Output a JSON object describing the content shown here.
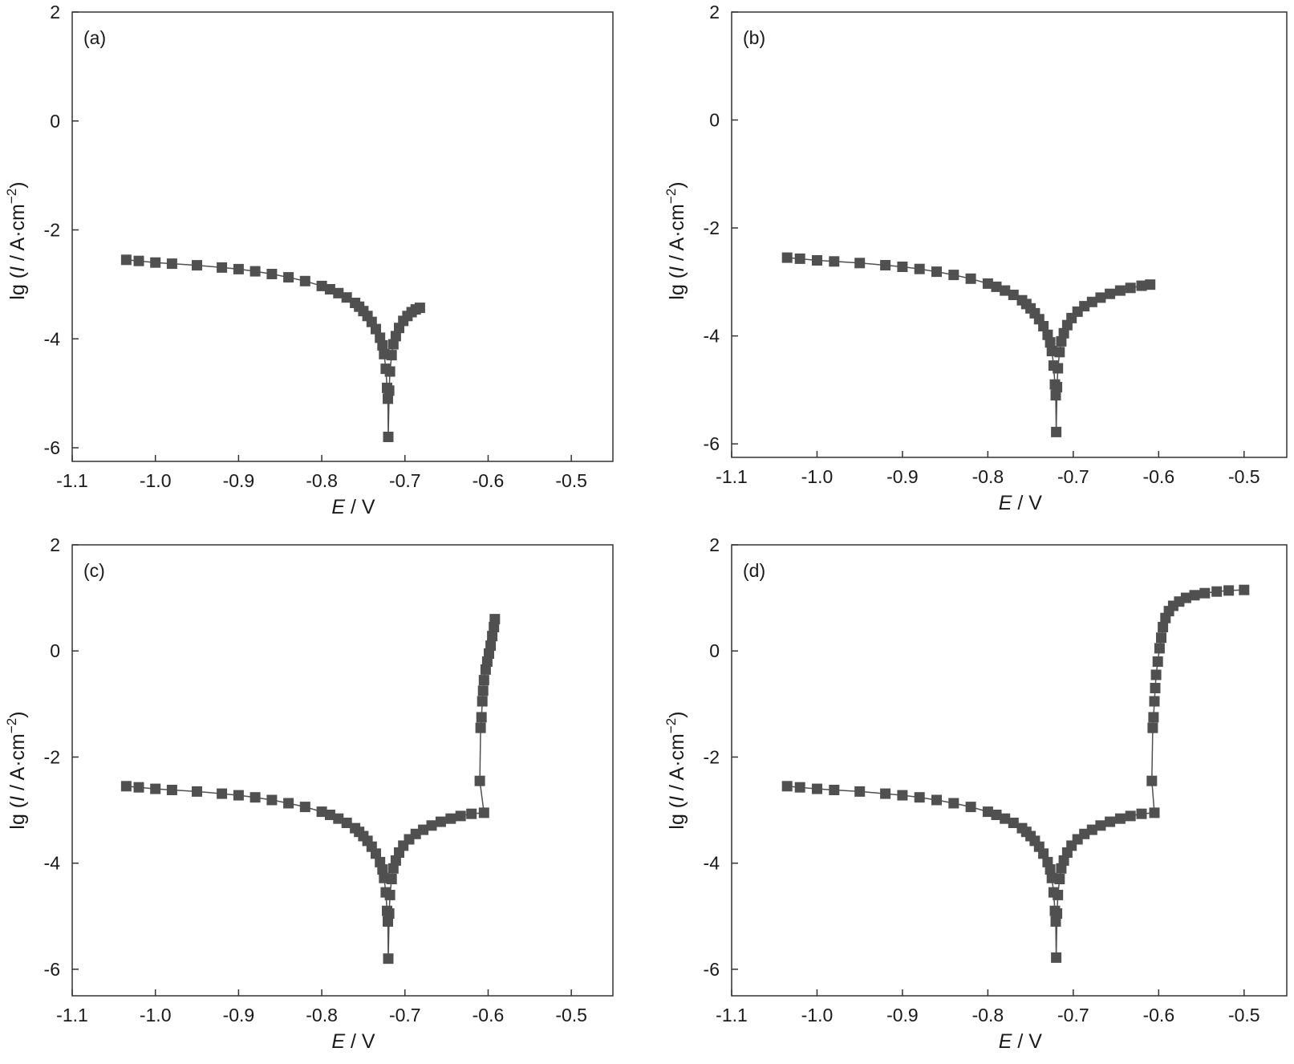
{
  "chart_data": [
    {
      "type": "scatter",
      "panel": "(a)",
      "xlabel_italic": "E",
      "xlabel_rest": " / V",
      "ylabel": {
        "prefix": "lg (",
        "italic": "I",
        "rest": " / A·cm",
        "sup": "−2",
        "suffix": ")"
      },
      "xlim": [
        -1.1,
        -0.45
      ],
      "ylim": [
        -6.25,
        2.0
      ],
      "xticks": [
        -1.1,
        -1.0,
        -0.9,
        -0.8,
        -0.7,
        -0.6,
        -0.5
      ],
      "xtick_labels": [
        "-1.1",
        "-1.0",
        "-0.9",
        "-0.8",
        "-0.7",
        "-0.6",
        "-0.5"
      ],
      "yticks": [
        2,
        0,
        -2,
        -4,
        -6
      ],
      "ytick_labels": [
        "2",
        "0",
        "-2",
        "-4",
        "-6"
      ],
      "grid": false,
      "legend": false,
      "marker_color": "#505050",
      "marker": "square",
      "x": [
        -1.035,
        -1.02,
        -1.0,
        -0.98,
        -0.95,
        -0.92,
        -0.9,
        -0.88,
        -0.86,
        -0.84,
        -0.82,
        -0.8,
        -0.79,
        -0.78,
        -0.77,
        -0.76,
        -0.755,
        -0.75,
        -0.745,
        -0.74,
        -0.735,
        -0.73,
        -0.727,
        -0.725,
        -0.723,
        -0.7215,
        -0.7205,
        -0.72,
        -0.719,
        -0.718,
        -0.716,
        -0.714,
        -0.711,
        -0.707,
        -0.702,
        -0.697,
        -0.692,
        -0.687,
        -0.682
      ],
      "y": [
        -2.55,
        -2.57,
        -2.6,
        -2.62,
        -2.65,
        -2.69,
        -2.72,
        -2.76,
        -2.81,
        -2.87,
        -2.94,
        -3.03,
        -3.09,
        -3.16,
        -3.24,
        -3.34,
        -3.41,
        -3.49,
        -3.58,
        -3.69,
        -3.82,
        -3.98,
        -4.12,
        -4.28,
        -4.55,
        -4.9,
        -5.1,
        -5.8,
        -4.95,
        -4.6,
        -4.3,
        -4.1,
        -3.95,
        -3.8,
        -3.67,
        -3.58,
        -3.51,
        -3.46,
        -3.43
      ]
    },
    {
      "type": "scatter",
      "panel": "(b)",
      "xlabel_italic": "E",
      "xlabel_rest": " / V",
      "ylabel": {
        "prefix": "lg (",
        "italic": "I",
        "rest": " / A·cm",
        "sup": "−2",
        "suffix": ")"
      },
      "xlim": [
        -1.1,
        -0.45
      ],
      "ylim": [
        -6.25,
        2.0
      ],
      "xticks": [
        -1.1,
        -1.0,
        -0.9,
        -0.8,
        -0.7,
        -0.6,
        -0.5
      ],
      "xtick_labels": [
        "-1.1",
        "-1.0",
        "-0.9",
        "-0.8",
        "-0.7",
        "-0.6",
        "-0.5"
      ],
      "yticks": [
        2,
        0,
        -2,
        -4,
        -6
      ],
      "ytick_labels": [
        "2",
        "0",
        "-2",
        "-4",
        "-6"
      ],
      "grid": false,
      "legend": false,
      "marker_color": "#505050",
      "marker": "square",
      "x": [
        -1.035,
        -1.02,
        -1.0,
        -0.98,
        -0.95,
        -0.92,
        -0.9,
        -0.88,
        -0.86,
        -0.84,
        -0.82,
        -0.8,
        -0.79,
        -0.78,
        -0.77,
        -0.76,
        -0.755,
        -0.75,
        -0.745,
        -0.74,
        -0.735,
        -0.73,
        -0.727,
        -0.725,
        -0.723,
        -0.7215,
        -0.7205,
        -0.72,
        -0.719,
        -0.718,
        -0.716,
        -0.714,
        -0.711,
        -0.707,
        -0.702,
        -0.695,
        -0.687,
        -0.678,
        -0.668,
        -0.657,
        -0.645,
        -0.633,
        -0.62,
        -0.61
      ],
      "y": [
        -2.55,
        -2.57,
        -2.6,
        -2.62,
        -2.65,
        -2.69,
        -2.72,
        -2.76,
        -2.81,
        -2.87,
        -2.94,
        -3.03,
        -3.09,
        -3.16,
        -3.24,
        -3.34,
        -3.41,
        -3.49,
        -3.58,
        -3.69,
        -3.82,
        -3.98,
        -4.12,
        -4.28,
        -4.55,
        -4.9,
        -5.1,
        -5.78,
        -4.95,
        -4.6,
        -4.3,
        -4.1,
        -3.95,
        -3.8,
        -3.67,
        -3.55,
        -3.45,
        -3.37,
        -3.29,
        -3.22,
        -3.16,
        -3.11,
        -3.07,
        -3.05
      ]
    },
    {
      "type": "scatter",
      "panel": "(c)",
      "xlabel_italic": "E",
      "xlabel_rest": " / V",
      "ylabel": {
        "prefix": "lg (",
        "italic": "I",
        "rest": " / A·cm",
        "sup": "−2",
        "suffix": ")"
      },
      "xlim": [
        -1.1,
        -0.45
      ],
      "ylim": [
        -6.5,
        2.0
      ],
      "xticks": [
        -1.1,
        -1.0,
        -0.9,
        -0.8,
        -0.7,
        -0.6,
        -0.5
      ],
      "xtick_labels": [
        "-1.1",
        "-1.0",
        "-0.9",
        "-0.8",
        "-0.7",
        "-0.6",
        "-0.5"
      ],
      "yticks": [
        2,
        0,
        -2,
        -4,
        -6
      ],
      "ytick_labels": [
        "2",
        "0",
        "-2",
        "-4",
        "-6"
      ],
      "grid": false,
      "legend": false,
      "marker_color": "#505050",
      "marker": "square",
      "x": [
        -1.035,
        -1.02,
        -1.0,
        -0.98,
        -0.95,
        -0.92,
        -0.9,
        -0.88,
        -0.86,
        -0.84,
        -0.82,
        -0.8,
        -0.79,
        -0.78,
        -0.77,
        -0.76,
        -0.755,
        -0.75,
        -0.745,
        -0.74,
        -0.735,
        -0.73,
        -0.727,
        -0.725,
        -0.723,
        -0.7215,
        -0.7205,
        -0.72,
        -0.719,
        -0.718,
        -0.716,
        -0.714,
        -0.711,
        -0.707,
        -0.702,
        -0.695,
        -0.687,
        -0.678,
        -0.668,
        -0.657,
        -0.645,
        -0.633,
        -0.62,
        -0.605,
        -0.61,
        -0.609,
        -0.608,
        -0.607,
        -0.606,
        -0.605,
        -0.603,
        -0.601,
        -0.599,
        -0.597,
        -0.595,
        -0.593,
        -0.592
      ],
      "y": [
        -2.55,
        -2.57,
        -2.6,
        -2.62,
        -2.65,
        -2.69,
        -2.72,
        -2.76,
        -2.81,
        -2.87,
        -2.94,
        -3.03,
        -3.09,
        -3.16,
        -3.24,
        -3.34,
        -3.41,
        -3.49,
        -3.58,
        -3.69,
        -3.82,
        -3.98,
        -4.12,
        -4.28,
        -4.55,
        -4.9,
        -5.1,
        -5.8,
        -4.95,
        -4.6,
        -4.3,
        -4.1,
        -3.95,
        -3.8,
        -3.67,
        -3.55,
        -3.45,
        -3.37,
        -3.29,
        -3.22,
        -3.16,
        -3.11,
        -3.07,
        -3.05,
        -2.45,
        -1.45,
        -1.25,
        -0.95,
        -0.75,
        -0.55,
        -0.35,
        -0.2,
        -0.05,
        0.1,
        0.28,
        0.45,
        0.6
      ]
    },
    {
      "type": "scatter",
      "panel": "(d)",
      "xlabel_italic": "E",
      "xlabel_rest": " / V",
      "ylabel": {
        "prefix": "lg (",
        "italic": "I",
        "rest": " / A·cm",
        "sup": "−2",
        "suffix": ")"
      },
      "xlim": [
        -1.1,
        -0.45
      ],
      "ylim": [
        -6.5,
        2.0
      ],
      "xticks": [
        -1.1,
        -1.0,
        -0.9,
        -0.8,
        -0.7,
        -0.6,
        -0.5
      ],
      "xtick_labels": [
        "-1.1",
        "-1.0",
        "-0.9",
        "-0.8",
        "-0.7",
        "-0.6",
        "-0.5"
      ],
      "yticks": [
        2,
        0,
        -2,
        -4,
        -6
      ],
      "ytick_labels": [
        "2",
        "0",
        "-2",
        "-4",
        "-6"
      ],
      "grid": false,
      "legend": false,
      "marker_color": "#505050",
      "marker": "square",
      "x": [
        -1.035,
        -1.02,
        -1.0,
        -0.98,
        -0.95,
        -0.92,
        -0.9,
        -0.88,
        -0.86,
        -0.84,
        -0.82,
        -0.8,
        -0.79,
        -0.78,
        -0.77,
        -0.76,
        -0.755,
        -0.75,
        -0.745,
        -0.74,
        -0.735,
        -0.73,
        -0.727,
        -0.725,
        -0.723,
        -0.7215,
        -0.7205,
        -0.72,
        -0.719,
        -0.718,
        -0.716,
        -0.714,
        -0.711,
        -0.707,
        -0.702,
        -0.695,
        -0.687,
        -0.678,
        -0.668,
        -0.657,
        -0.645,
        -0.633,
        -0.62,
        -0.605,
        -0.608,
        -0.607,
        -0.606,
        -0.605,
        -0.604,
        -0.603,
        -0.601,
        -0.599,
        -0.597,
        -0.595,
        -0.592,
        -0.588,
        -0.583,
        -0.576,
        -0.568,
        -0.558,
        -0.546,
        -0.532,
        -0.518,
        -0.5
      ],
      "y": [
        -2.55,
        -2.57,
        -2.6,
        -2.62,
        -2.65,
        -2.69,
        -2.72,
        -2.76,
        -2.81,
        -2.87,
        -2.94,
        -3.03,
        -3.09,
        -3.16,
        -3.24,
        -3.34,
        -3.41,
        -3.49,
        -3.58,
        -3.69,
        -3.82,
        -3.98,
        -4.12,
        -4.28,
        -4.55,
        -4.9,
        -5.1,
        -5.78,
        -4.95,
        -4.6,
        -4.3,
        -4.1,
        -3.95,
        -3.8,
        -3.67,
        -3.55,
        -3.45,
        -3.37,
        -3.29,
        -3.22,
        -3.16,
        -3.11,
        -3.07,
        -3.05,
        -2.45,
        -1.45,
        -1.25,
        -0.95,
        -0.7,
        -0.45,
        -0.2,
        0.05,
        0.25,
        0.45,
        0.62,
        0.75,
        0.85,
        0.93,
        1.0,
        1.05,
        1.09,
        1.12,
        1.14,
        1.15
      ]
    }
  ]
}
